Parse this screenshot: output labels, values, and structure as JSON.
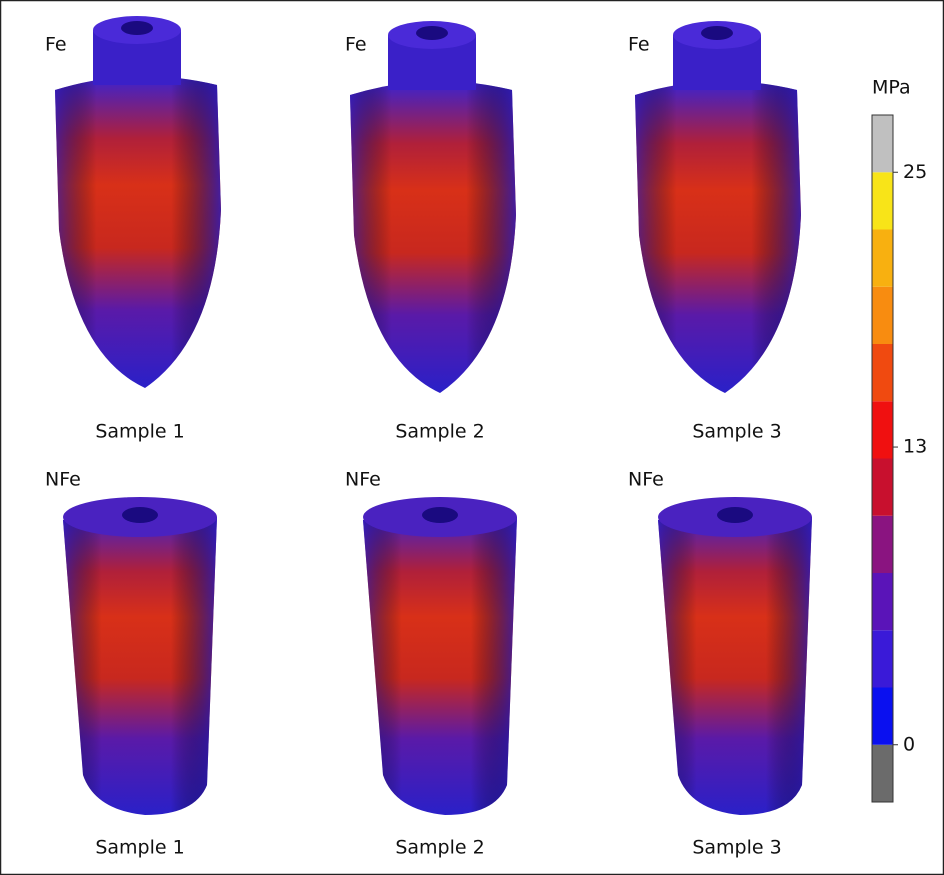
{
  "panels": [
    {
      "condition": "Fe",
      "sample": "Sample 1"
    },
    {
      "condition": "Fe",
      "sample": "Sample 2"
    },
    {
      "condition": "Fe",
      "sample": "Sample 3"
    },
    {
      "condition": "NFe",
      "sample": "Sample 1"
    },
    {
      "condition": "NFe",
      "sample": "Sample 2"
    },
    {
      "condition": "NFe",
      "sample": "Sample 3"
    }
  ],
  "colorbar": {
    "unit": "MPa",
    "lim": [
      -2.5,
      27.5
    ],
    "ticks": [
      25,
      13,
      0
    ],
    "colors": [
      "#6b6b6b",
      "#0a10f0",
      "#3a1ad8",
      "#5a14b8",
      "#8a1480",
      "#c8102e",
      "#f01010",
      "#f04a10",
      "#f88c10",
      "#f8b010",
      "#f8e418",
      "#c0c0c0"
    ]
  }
}
